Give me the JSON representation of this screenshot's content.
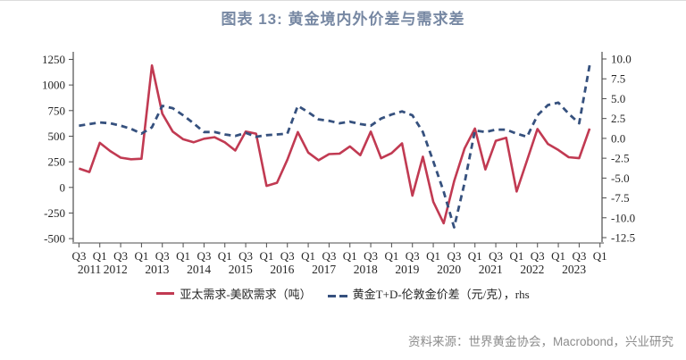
{
  "title": "图表 13: 黄金境内外价差与需求差",
  "source_note": "资料来源：世界黄金协会，Macrobond，兴业研究",
  "colors": {
    "title_text": "#7788A3",
    "demand_line": "#C13A52",
    "spread_line": "#36517E",
    "axis_line": "#4d4d4d",
    "baseline": "#a6a6a6",
    "source_text": "#8c8c8c"
  },
  "chart_data": {
    "type": "line",
    "title": "黄金境内外价差与需求差",
    "x_quarters": [
      "2011Q3",
      "2011Q4",
      "2012Q1",
      "2012Q2",
      "2012Q3",
      "2012Q4",
      "2013Q1",
      "2013Q2",
      "2013Q3",
      "2013Q4",
      "2014Q1",
      "2014Q2",
      "2014Q3",
      "2014Q4",
      "2015Q1",
      "2015Q2",
      "2015Q3",
      "2015Q4",
      "2016Q1",
      "2016Q2",
      "2016Q3",
      "2016Q4",
      "2017Q1",
      "2017Q2",
      "2017Q3",
      "2017Q4",
      "2018Q1",
      "2018Q2",
      "2018Q3",
      "2018Q4",
      "2019Q1",
      "2019Q2",
      "2019Q3",
      "2019Q4",
      "2020Q1",
      "2020Q2",
      "2020Q3",
      "2020Q4",
      "2021Q1",
      "2021Q2",
      "2021Q3",
      "2021Q4",
      "2022Q1",
      "2022Q2",
      "2022Q3",
      "2022Q4",
      "2023Q1",
      "2023Q2",
      "2023Q3",
      "2023Q4"
    ],
    "series": [
      {
        "name": "亚太需求-美欧需求（吨）",
        "axis": "left",
        "style": "solid",
        "color": "#C13A52",
        "values": [
          185,
          150,
          435,
          355,
          290,
          275,
          280,
          1190,
          720,
          545,
          470,
          440,
          475,
          490,
          440,
          360,
          545,
          525,
          15,
          45,
          270,
          540,
          340,
          265,
          325,
          330,
          400,
          315,
          545,
          285,
          335,
          430,
          -80,
          300,
          -140,
          -350,
          60,
          380,
          575,
          175,
          455,
          485,
          -40,
          265,
          570,
          425,
          365,
          295,
          285,
          575
        ]
      },
      {
        "name": "黄金T+D-伦敦金价差（元/克），rhs",
        "axis": "right",
        "style": "dashed",
        "color": "#36517E",
        "values": [
          1.6,
          1.8,
          2.0,
          1.9,
          1.6,
          1.2,
          0.6,
          1.4,
          4.1,
          3.8,
          2.9,
          1.9,
          0.8,
          0.8,
          0.5,
          0.3,
          0.7,
          0.2,
          0.4,
          0.5,
          0.6,
          4.1,
          3.3,
          2.4,
          2.2,
          1.9,
          2.1,
          1.8,
          1.6,
          2.5,
          3.0,
          3.4,
          2.9,
          0.8,
          -2.9,
          -6.7,
          -11.2,
          -5.6,
          1.0,
          0.8,
          1.1,
          1.1,
          0.6,
          0.2,
          2.9,
          4.2,
          4.5,
          3.1,
          1.9,
          9.2
        ]
      }
    ],
    "left_axis": {
      "ticks": [
        "1250",
        "1000",
        "750",
        "500",
        "250",
        "0",
        "-250",
        "-500"
      ],
      "range": [
        -500,
        1250
      ]
    },
    "right_axis": {
      "ticks": [
        "10.0",
        "7.5",
        "5.0",
        "2.5",
        "0.0",
        "-2.5",
        "-5.0",
        "-7.5",
        "-10.0",
        "-12.5"
      ],
      "range": [
        -12.5,
        10.0
      ]
    },
    "x_axis": {
      "tick_labels": [
        "Q3",
        "Q1",
        "Q3",
        "Q1",
        "Q3",
        "Q1",
        "Q3",
        "Q1",
        "Q3",
        "Q1",
        "Q3",
        "Q1",
        "Q3",
        "Q1",
        "Q3",
        "Q1",
        "Q3",
        "Q1",
        "Q3",
        "Q1",
        "Q3",
        "Q1",
        "Q3",
        "Q1",
        "Q3",
        "Q1"
      ],
      "year_labels": [
        "2011",
        "2012",
        "2013",
        "2014",
        "2015",
        "2016",
        "2017",
        "2018",
        "2019",
        "2020",
        "2021",
        "2022",
        "2023"
      ]
    },
    "grid": false,
    "legend_position": "bottom"
  }
}
